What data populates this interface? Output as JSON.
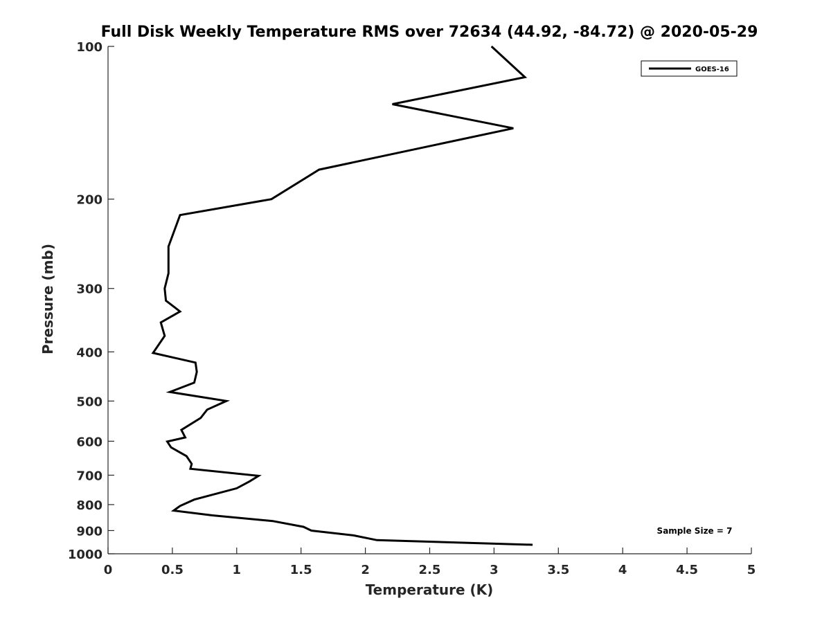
{
  "chart_data": {
    "type": "line",
    "title": "Full Disk Weekly Temperature RMS over 72634 (44.92, -84.72) @ 2020-05-29",
    "xlabel": "Temperature (K)",
    "ylabel": "Pressure (mb)",
    "xlim": [
      0,
      5
    ],
    "ylim": [
      1000,
      100
    ],
    "y_scale": "log",
    "y_reversed": true,
    "x_ticks": [
      "0",
      "0.5",
      "1",
      "1.5",
      "2",
      "2.5",
      "3",
      "3.5",
      "4",
      "4.5",
      "5"
    ],
    "y_ticks": [
      "100",
      "200",
      "300",
      "400",
      "500",
      "600",
      "700",
      "800",
      "900",
      "1000"
    ],
    "grid": false,
    "legend_position": "top-right",
    "annotation": "Sample Size = 7",
    "series": [
      {
        "name": "GOES-16",
        "color": "#000000",
        "points": [
          [
            2.98,
            100
          ],
          [
            3.24,
            115
          ],
          [
            2.21,
            130
          ],
          [
            3.15,
            145
          ],
          [
            1.64,
            175
          ],
          [
            1.27,
            200
          ],
          [
            0.56,
            215
          ],
          [
            0.47,
            248
          ],
          [
            0.47,
            280
          ],
          [
            0.44,
            300
          ],
          [
            0.45,
            317
          ],
          [
            0.56,
            333
          ],
          [
            0.41,
            350
          ],
          [
            0.44,
            372
          ],
          [
            0.35,
            402
          ],
          [
            0.68,
            420
          ],
          [
            0.69,
            438
          ],
          [
            0.67,
            460
          ],
          [
            0.48,
            480
          ],
          [
            0.92,
            500
          ],
          [
            0.77,
            520
          ],
          [
            0.72,
            540
          ],
          [
            0.57,
            570
          ],
          [
            0.6,
            590
          ],
          [
            0.46,
            601
          ],
          [
            0.49,
            617
          ],
          [
            0.61,
            642
          ],
          [
            0.65,
            665
          ],
          [
            0.64,
            680
          ],
          [
            1.17,
            702
          ],
          [
            1.1,
            720
          ],
          [
            1.0,
            743
          ],
          [
            0.67,
            782
          ],
          [
            0.56,
            805
          ],
          [
            0.51,
            822
          ],
          [
            0.81,
            840
          ],
          [
            1.28,
            862
          ],
          [
            1.52,
            885
          ],
          [
            1.58,
            900
          ],
          [
            1.91,
            920
          ],
          [
            2.09,
            940
          ],
          [
            3.3,
            960
          ]
        ]
      }
    ]
  }
}
